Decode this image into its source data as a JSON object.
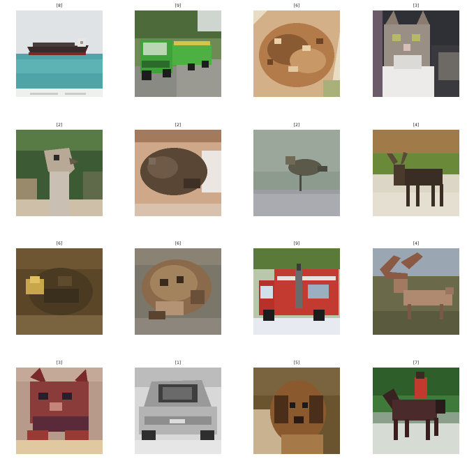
{
  "panels": [
    {
      "label": "[8]",
      "subject": "ship"
    },
    {
      "label": "[9]",
      "subject": "truck"
    },
    {
      "label": "[6]",
      "subject": "frog"
    },
    {
      "label": "[3]",
      "subject": "cat"
    },
    {
      "label": "[2]",
      "subject": "bird"
    },
    {
      "label": "[2]",
      "subject": "bird"
    },
    {
      "label": "[2]",
      "subject": "bird"
    },
    {
      "label": "[4]",
      "subject": "deer"
    },
    {
      "label": "[6]",
      "subject": "frog"
    },
    {
      "label": "[6]",
      "subject": "frog"
    },
    {
      "label": "[9]",
      "subject": "truck"
    },
    {
      "label": "[4]",
      "subject": "deer"
    },
    {
      "label": "[3]",
      "subject": "cat"
    },
    {
      "label": "[1]",
      "subject": "automobile"
    },
    {
      "label": "[5]",
      "subject": "dog"
    },
    {
      "label": "[7]",
      "subject": "horse"
    }
  ]
}
